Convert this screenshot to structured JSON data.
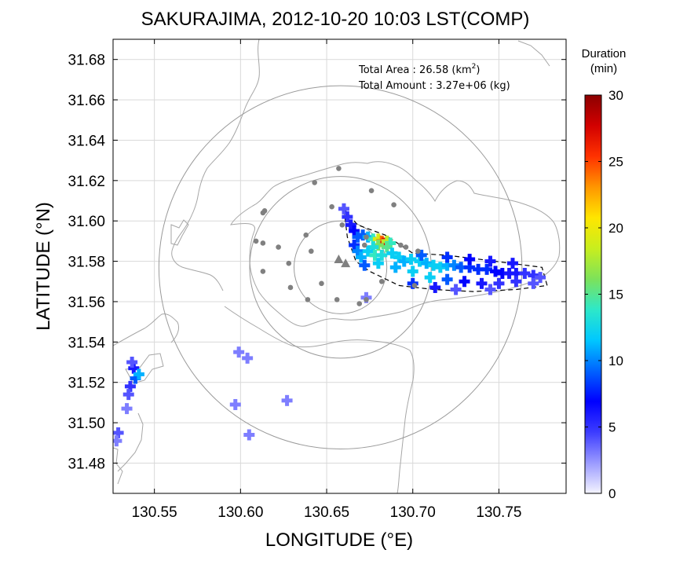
{
  "chart_data": {
    "type": "heatmap",
    "title": "SAKURAJIMA, 2012-10-20 10:03 LST(COMP)",
    "xlabel": "LONGITUDE (°E)",
    "ylabel": "LATITUDE (°N)",
    "xlim": [
      130.526,
      130.789
    ],
    "ylim": [
      31.465,
      31.69
    ],
    "xticks": [
      130.55,
      130.6,
      130.65,
      130.7,
      130.75
    ],
    "xtick_labels": [
      "130.55",
      "130.60",
      "130.65",
      "130.70",
      "130.75"
    ],
    "yticks": [
      31.48,
      31.5,
      31.52,
      31.54,
      31.56,
      31.58,
      31.6,
      31.62,
      31.64,
      31.66,
      31.68
    ],
    "ytick_labels": [
      "31.48",
      "31.50",
      "31.52",
      "31.54",
      "31.56",
      "31.58",
      "31.60",
      "31.62",
      "31.64",
      "31.66",
      "31.68"
    ],
    "grid": true,
    "annotation": {
      "area_label": "Total Area   : 26.58 (km",
      "area_sup": "2",
      "area_close": ")",
      "amount_label": "Total Amount : 3.27e+06 (kg)"
    },
    "colorbar": {
      "label_line1": "Duration",
      "label_line2": "(min)",
      "min": 0,
      "max": 30,
      "ticks": [
        0,
        5,
        10,
        15,
        20,
        25,
        30
      ],
      "tick_labels": [
        "0",
        "5",
        "10",
        "15",
        "20",
        "25",
        "30"
      ],
      "colormap": [
        "#f4f4ff",
        "#9a9aff",
        "#3c3cff",
        "#0000ff",
        "#0064ff",
        "#00c8ff",
        "#2ee8c8",
        "#7de25a",
        "#c8ee1e",
        "#ffe600",
        "#ff9600",
        "#ff3200",
        "#d20000",
        "#8c0000"
      ]
    },
    "circles": [
      {
        "center": [
          130.658,
          31.577
        ],
        "radius_deg_lat": 0.023
      },
      {
        "center": [
          130.658,
          31.577
        ],
        "radius_deg_lat": 0.045
      },
      {
        "center": [
          130.658,
          31.577
        ],
        "radius_deg_lat": 0.09
      }
    ],
    "vents": [
      [
        130.657,
        31.581
      ],
      [
        130.661,
        31.579
      ]
    ],
    "stations": [
      [
        130.657,
        31.626
      ],
      [
        130.643,
        31.619
      ],
      [
        130.676,
        31.615
      ],
      [
        130.653,
        31.607
      ],
      [
        130.689,
        31.608
      ],
      [
        130.614,
        31.605
      ],
      [
        130.613,
        31.604
      ],
      [
        130.659,
        31.598
      ],
      [
        130.638,
        31.593
      ],
      [
        130.609,
        31.59
      ],
      [
        130.622,
        31.587
      ],
      [
        130.613,
        31.589
      ],
      [
        130.672,
        31.588
      ],
      [
        130.693,
        31.588
      ],
      [
        130.696,
        31.587
      ],
      [
        130.703,
        31.585
      ],
      [
        130.673,
        31.592
      ],
      [
        130.641,
        31.585
      ],
      [
        130.628,
        31.579
      ],
      [
        130.613,
        31.575
      ],
      [
        130.647,
        31.569
      ],
      [
        130.682,
        31.57
      ],
      [
        130.629,
        31.567
      ],
      [
        130.639,
        31.561
      ],
      [
        130.656,
        31.561
      ],
      [
        130.669,
        31.559
      ],
      [
        130.673,
        31.561
      ],
      [
        130.701,
        31.568
      ]
    ],
    "plume_region": [
      [
        130.66,
        31.606
      ],
      [
        130.668,
        31.598
      ],
      [
        130.684,
        31.593
      ],
      [
        130.7,
        31.584
      ],
      [
        130.72,
        31.583
      ],
      [
        130.748,
        31.58
      ],
      [
        130.775,
        31.577
      ],
      [
        130.778,
        31.568
      ],
      [
        130.76,
        31.566
      ],
      [
        130.735,
        31.565
      ],
      [
        130.712,
        31.566
      ],
      [
        130.692,
        31.568
      ],
      [
        130.675,
        31.575
      ],
      [
        130.667,
        31.58
      ],
      [
        130.662,
        31.592
      ]
    ],
    "series": [
      {
        "name": "duration_min",
        "points": [
          [
            130.66,
            31.606,
            4
          ],
          [
            130.662,
            31.602,
            5
          ],
          [
            130.664,
            31.598,
            6
          ],
          [
            130.666,
            31.595,
            7
          ],
          [
            130.668,
            31.592,
            9
          ],
          [
            130.666,
            31.588,
            8
          ],
          [
            130.668,
            31.585,
            10
          ],
          [
            130.67,
            31.582,
            11
          ],
          [
            130.671,
            31.593,
            9
          ],
          [
            130.674,
            31.592,
            11
          ],
          [
            130.677,
            31.591,
            14
          ],
          [
            130.68,
            31.591,
            19
          ],
          [
            130.682,
            31.59,
            24
          ],
          [
            130.683,
            31.589,
            27
          ],
          [
            130.685,
            31.59,
            18
          ],
          [
            130.687,
            31.589,
            14
          ],
          [
            130.685,
            31.587,
            15
          ],
          [
            130.68,
            31.588,
            16
          ],
          [
            130.677,
            31.587,
            13
          ],
          [
            130.674,
            31.585,
            12
          ],
          [
            130.678,
            31.583,
            14
          ],
          [
            130.682,
            31.583,
            13
          ],
          [
            130.688,
            31.584,
            12
          ],
          [
            130.692,
            31.582,
            12
          ],
          [
            130.695,
            31.58,
            11
          ],
          [
            130.699,
            31.581,
            12
          ],
          [
            130.704,
            31.58,
            12
          ],
          [
            130.708,
            31.579,
            11
          ],
          [
            130.712,
            31.578,
            12
          ],
          [
            130.716,
            31.577,
            12
          ],
          [
            130.72,
            31.578,
            11
          ],
          [
            130.724,
            31.578,
            10
          ],
          [
            130.728,
            31.577,
            9
          ],
          [
            130.733,
            31.577,
            8
          ],
          [
            130.738,
            31.576,
            8
          ],
          [
            130.743,
            31.576,
            8
          ],
          [
            130.748,
            31.575,
            7
          ],
          [
            130.752,
            31.574,
            7
          ],
          [
            130.756,
            31.574,
            6
          ],
          [
            130.76,
            31.574,
            6
          ],
          [
            130.765,
            31.574,
            5
          ],
          [
            130.77,
            31.573,
            5
          ],
          [
            130.774,
            31.572,
            4
          ],
          [
            130.69,
            31.577,
            11
          ],
          [
            130.7,
            31.575,
            12
          ],
          [
            130.71,
            31.572,
            12
          ],
          [
            130.72,
            31.571,
            9
          ],
          [
            130.73,
            31.57,
            7
          ],
          [
            130.74,
            31.569,
            6
          ],
          [
            130.75,
            31.569,
            5
          ],
          [
            130.76,
            31.57,
            5
          ],
          [
            130.77,
            31.569,
            4
          ],
          [
            130.68,
            31.579,
            12
          ],
          [
            130.672,
            31.578,
            9
          ],
          [
            130.7,
            31.569,
            8
          ],
          [
            130.713,
            31.567,
            6
          ],
          [
            130.725,
            31.566,
            4
          ],
          [
            130.745,
            31.566,
            4
          ],
          [
            130.758,
            31.579,
            6
          ],
          [
            130.745,
            31.58,
            6
          ],
          [
            130.733,
            31.581,
            7
          ],
          [
            130.72,
            31.582,
            8
          ],
          [
            130.705,
            31.583,
            9
          ],
          [
            130.673,
            31.562,
            3
          ],
          [
            130.599,
            31.535,
            3
          ],
          [
            130.604,
            31.532,
            3
          ],
          [
            130.597,
            31.509,
            3
          ],
          [
            130.627,
            31.511,
            3
          ],
          [
            130.605,
            31.494,
            3
          ],
          [
            130.538,
            31.527,
            6
          ],
          [
            130.539,
            31.522,
            9
          ],
          [
            130.536,
            31.518,
            5
          ],
          [
            130.535,
            31.514,
            4
          ],
          [
            130.534,
            31.507,
            3
          ],
          [
            130.537,
            31.53,
            4
          ],
          [
            130.541,
            31.524,
            11
          ],
          [
            130.529,
            31.495,
            4
          ],
          [
            130.528,
            31.491,
            3
          ]
        ]
      }
    ]
  }
}
